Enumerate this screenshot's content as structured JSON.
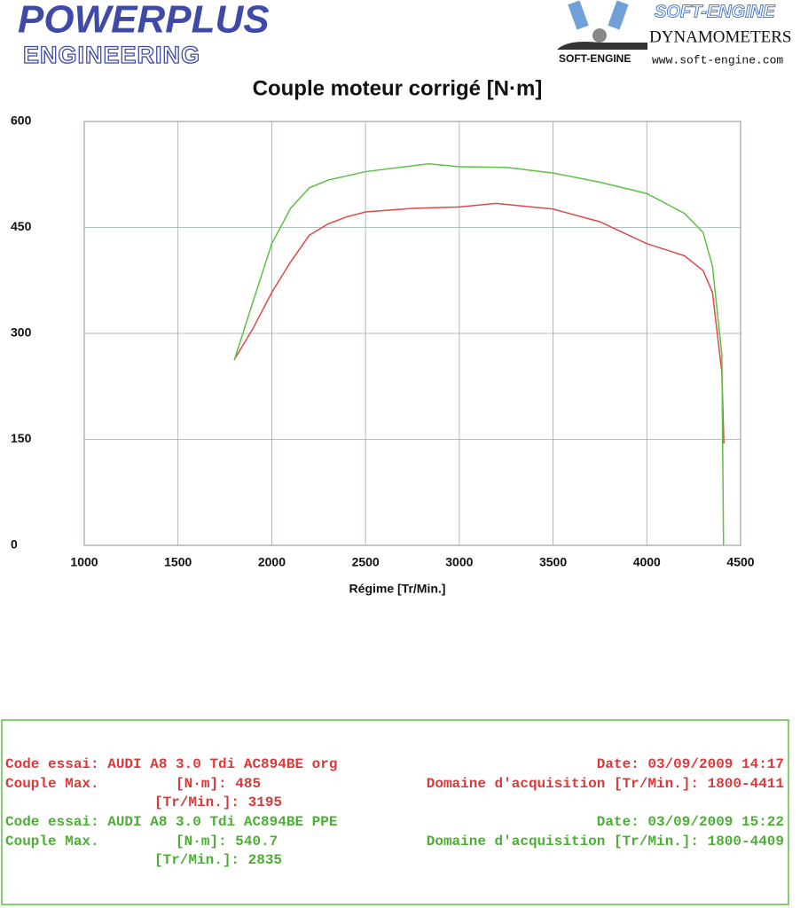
{
  "header": {
    "brand": "POWERPLUS",
    "brand_sub": "ENGINEERING",
    "maker": "SOFT-ENGINE",
    "maker_product": "DYNAMOMETERS",
    "maker_logo": "SOFT-ENGINE",
    "maker_url": "www.soft-engine.com"
  },
  "chart_data": {
    "type": "line",
    "title": "Couple moteur corrigé [N·m]",
    "x_label": "Régime [Tr/Min.]",
    "xlim": [
      1000,
      4500
    ],
    "xticks": [
      1000,
      1500,
      2000,
      2500,
      3000,
      3500,
      4000,
      4500
    ],
    "ylim": [
      0,
      600
    ],
    "yticks": [
      0,
      150,
      300,
      450,
      600
    ],
    "grid": true,
    "series": [
      {
        "color": "#e04848",
        "x": [
          1800,
          1900,
          2000,
          2100,
          2200,
          2300,
          2400,
          2500,
          2750,
          3000,
          3195,
          3500,
          3750,
          4000,
          4200,
          4300,
          4350,
          4400,
          4411
        ],
        "values": [
          263,
          307,
          358,
          401,
          439,
          455,
          465,
          472,
          477,
          479,
          484,
          476,
          458,
          427,
          410,
          389,
          358,
          245,
          144
        ]
      },
      {
        "color": "#5cc044",
        "x": [
          1800,
          1900,
          2000,
          2100,
          2200,
          2300,
          2500,
          2835,
          3000,
          3250,
          3500,
          3750,
          4000,
          4200,
          4300,
          4350,
          4400,
          4409
        ],
        "values": [
          262,
          345,
          427,
          477,
          506,
          517,
          529,
          540,
          536,
          535,
          527,
          514,
          498,
          470,
          443,
          395,
          270,
          0
        ]
      }
    ]
  },
  "info": {
    "tests": [
      {
        "color": "#d83a3a",
        "line1": "Code essai: AUDI A8 3.0 Tdi AC894BE org",
        "date": "Date: 03/09/2009 14:17",
        "line2": "Couple Max.         [N·m]: 485",
        "domain": "Domaine d'acquisition [Tr/Min.]: 1800-4411",
        "line3": "[Tr/Min.]: 3195"
      },
      {
        "color": "#4cae34",
        "line1": "Code essai: AUDI A8 3.0 Tdi AC894BE PPE",
        "date": "Date: 03/09/2009 15:22",
        "line2": "Couple Max.         [N·m]: 540.7",
        "domain": "Domaine d'acquisition [Tr/Min.]: 1800-4409",
        "line3": "[Tr/Min.]: 2835"
      }
    ]
  }
}
